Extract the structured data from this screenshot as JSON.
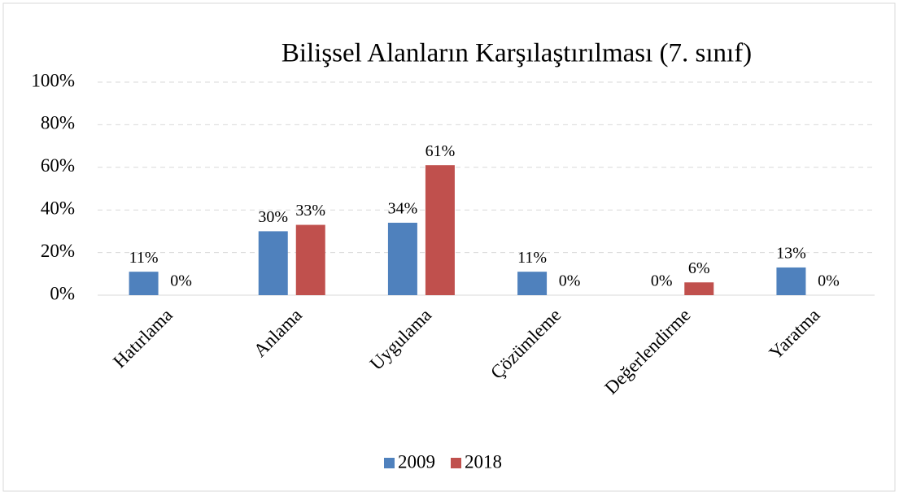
{
  "chart_data": {
    "type": "bar",
    "title": "Bilişsel Alanların Karşılaştırılması (7. sınıf)",
    "categories": [
      "Hatırlama",
      "Anlama",
      "Uygulama",
      "Çözümleme",
      "Değerlendirme",
      "Yaratma"
    ],
    "series": [
      {
        "name": "2009",
        "color": "#4f81bd",
        "values": [
          11,
          30,
          34,
          11,
          0,
          13
        ],
        "value_labels": [
          "11%",
          "30%",
          "34%",
          "11%",
          "0%",
          "13%"
        ]
      },
      {
        "name": "2018",
        "color": "#c0504d",
        "values": [
          0,
          33,
          61,
          0,
          6,
          0
        ],
        "value_labels": [
          "0%",
          "33%",
          "61%",
          "0%",
          "6%",
          "0%"
        ]
      }
    ],
    "ylim": [
      0,
      100
    ],
    "yticks": [
      {
        "value": 0,
        "label": "0%"
      },
      {
        "value": 20,
        "label": "20%"
      },
      {
        "value": 40,
        "label": "40%"
      },
      {
        "value": 60,
        "label": "60%"
      },
      {
        "value": 80,
        "label": "80%"
      },
      {
        "value": 100,
        "label": "100%"
      }
    ],
    "grid": true,
    "legend": "bottom"
  }
}
